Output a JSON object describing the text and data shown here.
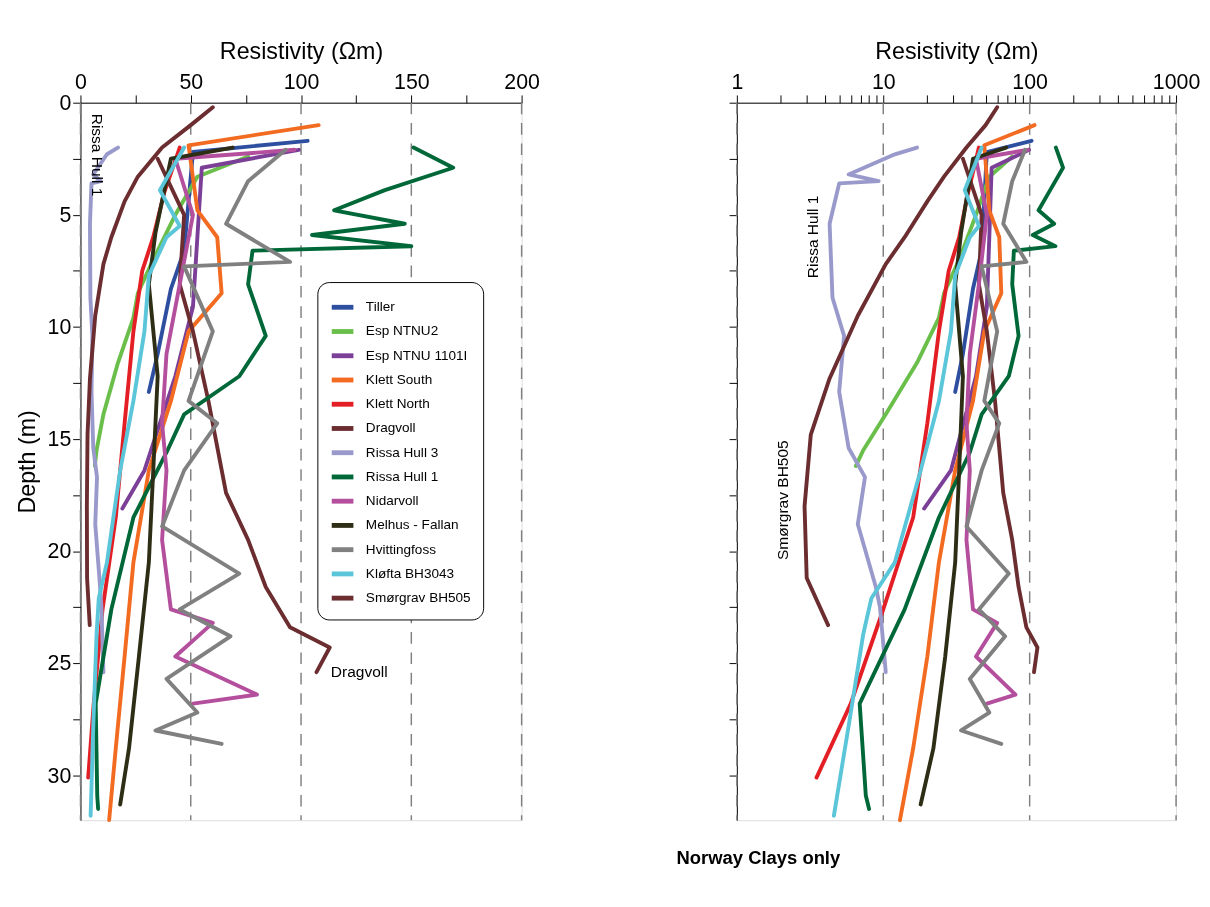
{
  "chart_data": [
    {
      "type": "line",
      "xlabel": "Resistivity (Ωm)",
      "ylabel": "Depth (m)",
      "xlim": [
        0,
        200
      ],
      "ylim": [
        32,
        0
      ],
      "xticks": [
        0,
        {
          "value": 25,
          "label": null
        },
        50,
        {
          "value": 75,
          "label": null
        },
        100,
        {
          "value": 125,
          "label": null
        },
        150,
        {
          "value": 175,
          "label": null
        },
        200
      ],
      "yticks": [
        0,
        {
          "value": 2.5,
          "label": null
        },
        5,
        {
          "value": 7.5,
          "label": null
        },
        10,
        {
          "value": 12.5,
          "label": null
        },
        15,
        {
          "value": 17.5,
          "label": null
        },
        20,
        {
          "value": 22.5,
          "label": null
        },
        25,
        {
          "value": 27.5,
          "label": null
        },
        30
      ],
      "grid": "x",
      "legend": "right",
      "series": [
        {
          "name": "Tiller",
          "color": "#2e4fa0",
          "x": [
            103,
            51,
            47,
            41,
            35,
            31
          ],
          "values": [
            1.7,
            2.2,
            6.6,
            8.3,
            11.2,
            12.9
          ]
        },
        {
          "name": "Esp NTNU2",
          "color": "#6abf4b",
          "x": [
            76,
            53,
            43,
            33,
            26,
            24,
            17,
            10.4,
            7.3,
            6.5
          ],
          "values": [
            2.4,
            3.3,
            5.0,
            7.0,
            8.5,
            9.6,
            11.6,
            13.9,
            15.5,
            16.2
          ]
        },
        {
          "name": "Esp NTNU 1101I",
          "color": "#7b3f98",
          "x": [
            99,
            55,
            53,
            51,
            43,
            29,
            19
          ],
          "values": [
            2.1,
            2.9,
            6.0,
            9.1,
            12.2,
            16.4,
            18.1
          ]
        },
        {
          "name": "Klett South",
          "color": "#f26b21",
          "x": [
            108,
            49,
            53,
            62,
            64,
            49,
            41,
            31,
            24,
            20,
            16,
            13
          ],
          "values": [
            1.0,
            1.9,
            4.8,
            6.0,
            8.5,
            10.2,
            13.3,
            16.4,
            20.5,
            24.7,
            28.8,
            32.0
          ]
        },
        {
          "name": "Klett North",
          "color": "#e31e24",
          "x": [
            45,
            38,
            33,
            28,
            24,
            20,
            16,
            10,
            6,
            3.5
          ],
          "values": [
            2.0,
            4.0,
            6.0,
            7.5,
            10.2,
            14.3,
            18.5,
            22.6,
            26.8,
            30.1
          ]
        },
        {
          "name": "Dragvoll",
          "color": "#6b2d2f",
          "x": [
            35,
            47,
            45,
            51,
            58,
            66,
            76,
            84,
            95,
            113,
            107
          ],
          "values": [
            2.5,
            5.0,
            8.1,
            10.2,
            13.3,
            17.4,
            19.5,
            21.6,
            23.4,
            24.3,
            25.4
          ]
        },
        {
          "name": "Rissa Hull 3",
          "color": "#9999cc",
          "x": [
            17,
            12,
            5.8,
            9.3,
            5,
            4.3,
            4.5,
            5.4,
            5.0,
            5.8,
            7.5,
            6.7,
            8.9,
            9.5,
            10.4
          ],
          "values": [
            2.0,
            2.3,
            3.2,
            3.5,
            3.6,
            5.4,
            8.7,
            10.4,
            12.9,
            15.4,
            16.7,
            18.8,
            21.6,
            22.5,
            25.4
          ]
        },
        {
          "name": "Rissa Hull 1",
          "color": "#006838",
          "x": [
            151,
            169,
            138,
            115,
            147,
            105,
            150,
            78,
            76,
            84,
            72,
            47,
            39,
            24,
            14,
            6.9,
            7.6,
            8
          ],
          "values": [
            2.0,
            2.9,
            3.9,
            4.8,
            5.4,
            5.9,
            6.4,
            6.6,
            8.1,
            10.4,
            12.2,
            13.9,
            15.6,
            18.5,
            22.6,
            26.8,
            30.9,
            31.5
          ]
        },
        {
          "name": "Nidarvoll",
          "color": "#b44f9e",
          "x": [
            97,
            43,
            51,
            45,
            39,
            37,
            39,
            37,
            41,
            60,
            43,
            80,
            51
          ],
          "values": [
            2.1,
            2.5,
            5.0,
            8.1,
            11.2,
            14.3,
            16.4,
            19.5,
            22.6,
            23.2,
            24.7,
            26.4,
            26.8
          ]
        },
        {
          "name": "Melhus - Fallan",
          "color": "#2e2e16",
          "x": [
            69,
            41,
            34,
            31,
            35,
            33,
            31,
            26.5,
            22,
            18
          ],
          "values": [
            2.0,
            2.5,
            5.8,
            8.1,
            12.2,
            16.4,
            20.5,
            24.7,
            28.8,
            31.3
          ]
        },
        {
          "name": "Hvittingfoss",
          "color": "#808080",
          "x": [
            93,
            76,
            66,
            95,
            47,
            60,
            49,
            62,
            47,
            37,
            72,
            45,
            68,
            39,
            53,
            34,
            64
          ],
          "values": [
            2.1,
            3.5,
            5.4,
            7.1,
            7.3,
            10.2,
            13.3,
            14.3,
            16.4,
            18.9,
            21.0,
            22.6,
            23.8,
            25.7,
            27.2,
            28.0,
            28.6
          ]
        },
        {
          "name": "Kløfta BH3043",
          "color": "#5bc5d9",
          "x": [
            47,
            36,
            45,
            39,
            31,
            29,
            24,
            18,
            12,
            8.3,
            7.3,
            5.8,
            4.6
          ],
          "values": [
            2.0,
            3.9,
            5.5,
            6.0,
            7.7,
            10.2,
            13.3,
            16.4,
            20.5,
            22.1,
            23.7,
            27.8,
            31.8
          ]
        },
        {
          "name": "Smørgrav BH505",
          "color": "#6b2d2f",
          "x": [
            60,
            50,
            37,
            26,
            20,
            14,
            10.4,
            6.7,
            4.3,
            3.2,
            2.9,
            3.0,
            4.2
          ],
          "values": [
            0.2,
            1.0,
            2.0,
            3.3,
            4.4,
            6.0,
            7.2,
            9.5,
            12.3,
            14.8,
            18.0,
            21.2,
            23.3
          ]
        }
      ],
      "annotations": [
        "Rissa Hull 1",
        "Dragvoll"
      ]
    },
    {
      "type": "line",
      "xlabel": "Resistivity (Ωm)",
      "xlim": [
        1,
        1000
      ],
      "ylim": [
        32,
        0
      ],
      "log": "x",
      "tick_labels": "x",
      "xticks": [
        1,
        {
          "value": 2,
          "label": null
        },
        {
          "value": 3,
          "label": null
        },
        {
          "value": 4,
          "label": null
        },
        {
          "value": 5,
          "label": null
        },
        {
          "value": 6,
          "label": null
        },
        {
          "value": 7,
          "label": null
        },
        {
          "value": 8,
          "label": null
        },
        {
          "value": 9,
          "label": null
        },
        10,
        {
          "value": 20,
          "label": null
        },
        {
          "value": 30,
          "label": null
        },
        {
          "value": 40,
          "label": null
        },
        {
          "value": 50,
          "label": null
        },
        {
          "value": 60,
          "label": null
        },
        {
          "value": 70,
          "label": null
        },
        {
          "value": 80,
          "label": null
        },
        {
          "value": 90,
          "label": null
        },
        100,
        {
          "value": 200,
          "label": null
        },
        {
          "value": 300,
          "label": null
        },
        {
          "value": 400,
          "label": null
        },
        {
          "value": 500,
          "label": null
        },
        {
          "value": 600,
          "label": null
        },
        {
          "value": 700,
          "label": null
        },
        {
          "value": 800,
          "label": null
        },
        {
          "value": 900,
          "label": null
        },
        1000
      ],
      "yticks": [
        0,
        {
          "value": 2.5,
          "label": null
        },
        5,
        {
          "value": 7.5,
          "label": null
        },
        10,
        {
          "value": 12.5,
          "label": null
        },
        15,
        {
          "value": 17.5,
          "label": null
        },
        20,
        {
          "value": 22.5,
          "label": null
        },
        25,
        {
          "value": 27.5,
          "label": null
        },
        30
      ],
      "grid": "x",
      "series": [
        {
          "color": "#2e4fa0",
          "x": [
            103,
            51,
            47,
            41,
            35,
            31
          ],
          "values": [
            1.7,
            2.2,
            6.6,
            8.3,
            11.2,
            12.9
          ]
        },
        {
          "color": "#6abf4b",
          "x": [
            76,
            53,
            43,
            33,
            26,
            24,
            17,
            10.4,
            7.3,
            6.5
          ],
          "values": [
            2.4,
            3.3,
            5.0,
            7.0,
            8.5,
            9.6,
            11.6,
            13.9,
            15.5,
            16.2
          ]
        },
        {
          "color": "#7b3f98",
          "x": [
            99,
            55,
            53,
            51,
            43,
            29,
            19
          ],
          "values": [
            2.1,
            2.9,
            6.0,
            9.1,
            12.2,
            16.4,
            18.1
          ]
        },
        {
          "color": "#f26b21",
          "x": [
            108,
            49,
            53,
            62,
            64,
            49,
            41,
            31,
            24,
            20,
            16,
            13
          ],
          "values": [
            1.0,
            1.9,
            4.8,
            6.0,
            8.5,
            10.2,
            13.3,
            16.4,
            20.5,
            24.7,
            28.8,
            32.0
          ]
        },
        {
          "color": "#e31e24",
          "x": [
            45,
            38,
            33,
            28,
            24,
            20,
            16,
            10,
            6,
            3.5
          ],
          "values": [
            2.0,
            4.0,
            6.0,
            7.5,
            10.2,
            14.3,
            18.5,
            22.6,
            26.8,
            30.1
          ]
        },
        {
          "color": "#6b2d2f",
          "x": [
            35,
            47,
            45,
            51,
            58,
            66,
            76,
            84,
            95,
            113,
            107
          ],
          "values": [
            2.5,
            5.0,
            8.1,
            10.2,
            13.3,
            17.4,
            19.5,
            21.6,
            23.4,
            24.3,
            25.4
          ]
        },
        {
          "color": "#9999cc",
          "x": [
            17,
            12,
            5.8,
            9.3,
            5,
            4.3,
            4.5,
            5.4,
            5.0,
            5.8,
            7.5,
            6.7,
            8.9,
            9.5,
            10.4
          ],
          "values": [
            2.0,
            2.3,
            3.2,
            3.5,
            3.6,
            5.4,
            8.7,
            10.4,
            12.9,
            15.4,
            16.7,
            18.8,
            21.6,
            22.5,
            25.4
          ]
        },
        {
          "color": "#006838",
          "x": [
            151,
            169,
            138,
            115,
            147,
            105,
            150,
            78,
            76,
            84,
            72,
            47,
            39,
            24,
            14,
            6.9,
            7.6,
            8
          ],
          "values": [
            2.0,
            2.9,
            3.9,
            4.8,
            5.4,
            5.9,
            6.4,
            6.6,
            8.1,
            10.4,
            12.2,
            13.9,
            15.6,
            18.5,
            22.6,
            26.8,
            30.9,
            31.5
          ]
        },
        {
          "color": "#b44f9e",
          "x": [
            97,
            43,
            51,
            45,
            39,
            37,
            39,
            37,
            41,
            60,
            43,
            80,
            51
          ],
          "values": [
            2.1,
            2.5,
            5.0,
            8.1,
            11.2,
            14.3,
            16.4,
            19.5,
            22.6,
            23.2,
            24.7,
            26.4,
            26.8
          ]
        },
        {
          "color": "#2e2e16",
          "x": [
            69,
            41,
            34,
            31,
            35,
            33,
            31,
            26.5,
            22,
            18
          ],
          "values": [
            2.0,
            2.5,
            5.8,
            8.1,
            12.2,
            16.4,
            20.5,
            24.7,
            28.8,
            31.3
          ]
        },
        {
          "color": "#808080",
          "x": [
            93,
            76,
            66,
            95,
            47,
            60,
            49,
            62,
            47,
            37,
            72,
            45,
            68,
            39,
            53,
            34,
            64
          ],
          "values": [
            2.1,
            3.5,
            5.4,
            7.1,
            7.3,
            10.2,
            13.3,
            14.3,
            16.4,
            18.9,
            21.0,
            22.6,
            23.8,
            25.7,
            27.2,
            28.0,
            28.6
          ]
        },
        {
          "color": "#5bc5d9",
          "x": [
            47,
            36,
            45,
            39,
            31,
            29,
            24,
            18,
            12,
            8.3,
            7.3,
            5.8,
            4.6
          ],
          "values": [
            2.0,
            3.9,
            5.5,
            6.0,
            7.7,
            10.2,
            13.3,
            16.4,
            20.5,
            22.1,
            23.7,
            27.8,
            31.8
          ]
        },
        {
          "color": "#6b2d2f",
          "x": [
            60,
            50,
            37,
            26,
            20,
            14,
            10.4,
            6.7,
            4.3,
            3.2,
            2.9,
            3.0,
            4.2
          ],
          "values": [
            0.2,
            1.0,
            2.0,
            3.3,
            4.4,
            6.0,
            7.2,
            9.5,
            12.3,
            14.8,
            18.0,
            21.2,
            23.3
          ]
        }
      ],
      "annotations": [
        "Rissa Hull 1",
        "Smørgrav BH505",
        "Norway Clays only"
      ]
    }
  ]
}
